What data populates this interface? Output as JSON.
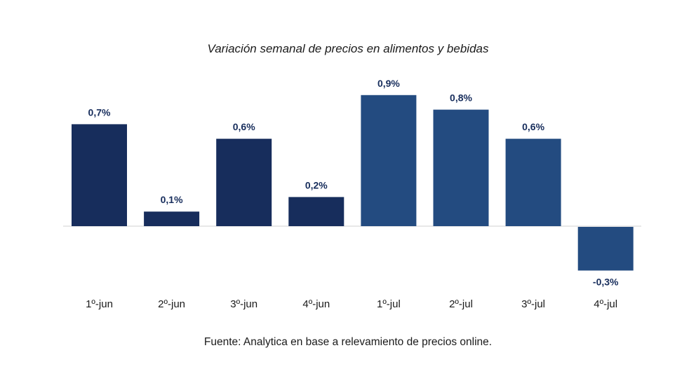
{
  "chart_data": {
    "type": "bar",
    "title": "Variación semanal de precios en alimentos y bebidas",
    "xlabel": "",
    "ylabel": "",
    "categories": [
      "1º-jun",
      "2º-jun",
      "3º-jun",
      "4º-jun",
      "1º-jul",
      "2º-jul",
      "3º-jul",
      "4º-jul"
    ],
    "values": [
      0.7,
      0.1,
      0.6,
      0.2,
      0.9,
      0.8,
      0.6,
      -0.3
    ],
    "data_labels": [
      "0,7%",
      "0,1%",
      "0,6%",
      "0,2%",
      "0,9%",
      "0,8%",
      "0,6%",
      "-0,3%"
    ],
    "unit": "%",
    "ylim": [
      -0.3,
      0.9
    ],
    "grid": false,
    "legend": "none",
    "colors": {
      "jun": "#172d5c",
      "jul": "#234b80",
      "label": "#172d5c",
      "axis": "#d0d0d0"
    }
  },
  "footer": {
    "source": "Fuente: Analytica en base a relevamiento de precios online."
  }
}
